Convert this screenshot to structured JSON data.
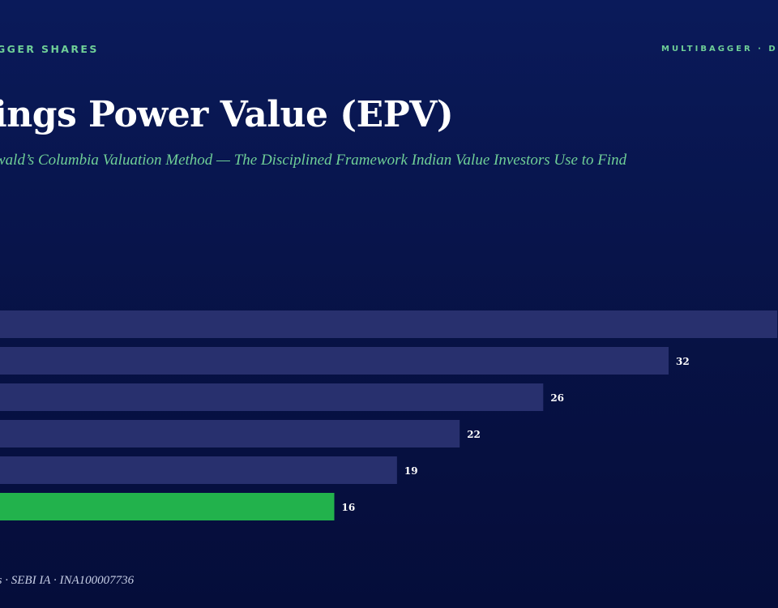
{
  "header": {
    "brand_left": "GGER SHARES",
    "brand_right": "MULTIBAGGER · D"
  },
  "title": "ings Power Value (EPV)",
  "subtitle": "wald’s Columbia Valuation Method — The Disciplined Framework Indian Value Investors Use to Find",
  "footer": "es · SEBI IA · INA100007736",
  "colors": {
    "bar_default": "#28306e",
    "bar_highlight": "#22b24c",
    "label": "#ffffff",
    "accent": "#6fcf97"
  },
  "chart_data": {
    "type": "bar",
    "orientation": "horizontal",
    "categories": [
      "",
      "",
      "",
      "",
      "",
      ""
    ],
    "values": [
      null,
      32,
      26,
      22,
      19,
      16
    ],
    "data_labels": [
      "",
      "32",
      "26",
      "22",
      "19",
      "16"
    ],
    "highlight_index": 5,
    "xlim": [
      0,
      36.2
    ]
  }
}
